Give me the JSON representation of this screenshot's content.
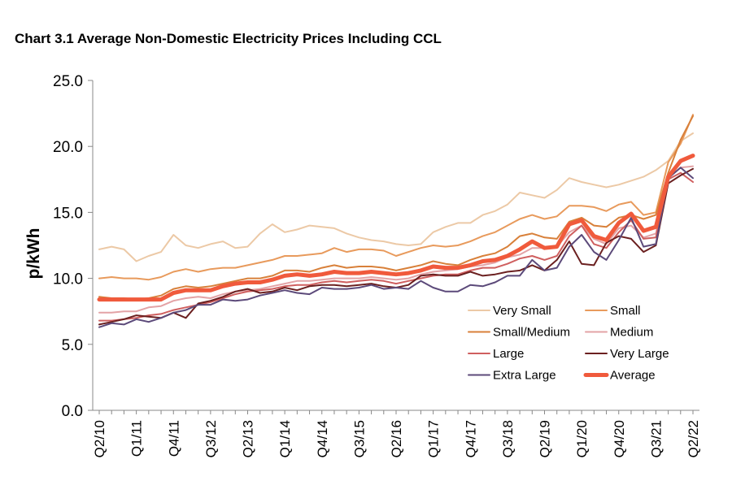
{
  "chart_data": {
    "type": "line",
    "title": "Chart 3.1 Average Non-Domestic Electricity Prices Including CCL",
    "xlabel": "",
    "ylabel": "p/kWh",
    "ylim": [
      0,
      25
    ],
    "yticks": [
      "0.0",
      "5.0",
      "10.0",
      "15.0",
      "20.0",
      "25.0"
    ],
    "x_tick_labels": [
      "Q2/10",
      "Q1/11",
      "Q4/11",
      "Q3/12",
      "Q2/13",
      "Q1/14",
      "Q4/14",
      "Q3/15",
      "Q2/16",
      "Q1/17",
      "Q4/17",
      "Q3/18",
      "Q2/19",
      "Q1/20",
      "Q4/20",
      "Q3/21",
      "Q2/22"
    ],
    "categories": [
      "Q2/10",
      "Q3/10",
      "Q4/10",
      "Q1/11",
      "Q2/11",
      "Q3/11",
      "Q4/11",
      "Q1/12",
      "Q2/12",
      "Q3/12",
      "Q4/12",
      "Q1/13",
      "Q2/13",
      "Q3/13",
      "Q4/13",
      "Q1/14",
      "Q2/14",
      "Q3/14",
      "Q4/14",
      "Q1/15",
      "Q2/15",
      "Q3/15",
      "Q4/15",
      "Q1/16",
      "Q2/16",
      "Q3/16",
      "Q4/16",
      "Q1/17",
      "Q2/17",
      "Q3/17",
      "Q4/17",
      "Q1/18",
      "Q2/18",
      "Q3/18",
      "Q4/18",
      "Q1/19",
      "Q2/19",
      "Q3/19",
      "Q4/19",
      "Q1/20",
      "Q2/20",
      "Q3/20",
      "Q4/20",
      "Q1/21",
      "Q2/21",
      "Q3/21",
      "Q4/21",
      "Q1/22",
      "Q2/22"
    ],
    "legend_position": "center-right",
    "series": [
      {
        "name": "Very Small",
        "color": "#ecc9a6",
        "width": 2,
        "values": [
          12.2,
          12.4,
          12.2,
          11.3,
          11.7,
          12.0,
          13.3,
          12.5,
          12.3,
          12.6,
          12.8,
          12.3,
          12.4,
          13.4,
          14.1,
          13.5,
          13.7,
          14.0,
          13.9,
          13.8,
          13.4,
          13.1,
          12.9,
          12.8,
          12.6,
          12.5,
          12.6,
          13.5,
          13.9,
          14.2,
          14.2,
          14.8,
          15.1,
          15.6,
          16.5,
          16.3,
          16.1,
          16.7,
          17.6,
          17.3,
          17.1,
          16.9,
          17.1,
          17.4,
          17.7,
          18.2,
          18.9,
          20.4,
          21.0
        ]
      },
      {
        "name": "Small",
        "color": "#e89a5c",
        "width": 2,
        "values": [
          10.0,
          10.1,
          10.0,
          10.0,
          9.9,
          10.1,
          10.5,
          10.7,
          10.5,
          10.7,
          10.8,
          10.8,
          11.0,
          11.2,
          11.4,
          11.7,
          11.7,
          11.8,
          11.9,
          12.3,
          12.0,
          12.2,
          12.2,
          12.1,
          11.7,
          12.0,
          12.3,
          12.5,
          12.4,
          12.5,
          12.8,
          13.2,
          13.5,
          14.0,
          14.5,
          14.8,
          14.5,
          14.7,
          15.5,
          15.5,
          15.4,
          15.1,
          15.6,
          15.8,
          14.8,
          15.0,
          18.8,
          20.2,
          22.4
        ]
      },
      {
        "name": "Small/Medium",
        "color": "#d8803a",
        "width": 2,
        "values": [
          8.6,
          8.5,
          8.5,
          8.4,
          8.5,
          8.7,
          9.2,
          9.4,
          9.3,
          9.4,
          9.6,
          9.8,
          10.0,
          10.0,
          10.2,
          10.6,
          10.6,
          10.5,
          10.8,
          11.0,
          10.8,
          10.9,
          10.9,
          10.8,
          10.6,
          10.8,
          11.0,
          11.3,
          11.1,
          11.0,
          11.4,
          11.7,
          11.9,
          12.4,
          13.2,
          13.4,
          13.1,
          13.0,
          14.3,
          14.6,
          14.0,
          13.9,
          14.6,
          14.8,
          14.5,
          14.8,
          18.0,
          20.5,
          22.3
        ]
      },
      {
        "name": "Medium",
        "color": "#e3a3a6",
        "width": 2,
        "values": [
          7.4,
          7.4,
          7.5,
          7.5,
          7.8,
          7.9,
          8.3,
          8.5,
          8.6,
          8.5,
          8.8,
          9.0,
          9.1,
          9.2,
          9.4,
          9.6,
          9.8,
          9.8,
          9.9,
          10.0,
          10.0,
          10.0,
          10.1,
          10.0,
          9.9,
          10.0,
          10.3,
          10.5,
          10.6,
          10.7,
          10.9,
          11.0,
          11.2,
          11.6,
          11.8,
          12.3,
          12.3,
          12.4,
          13.5,
          14.0,
          13.0,
          12.6,
          13.8,
          14.0,
          13.1,
          13.4,
          17.6,
          18.4,
          18.5
        ]
      },
      {
        "name": "Large",
        "color": "#cf5f5f",
        "width": 2,
        "values": [
          6.8,
          6.8,
          6.9,
          7.0,
          7.2,
          7.3,
          7.6,
          7.8,
          8.0,
          8.2,
          8.5,
          8.8,
          9.0,
          9.1,
          9.2,
          9.4,
          9.5,
          9.5,
          9.7,
          9.8,
          9.7,
          9.8,
          9.9,
          9.8,
          9.6,
          9.8,
          10.0,
          10.2,
          10.3,
          10.3,
          10.6,
          10.8,
          10.8,
          11.1,
          11.5,
          11.7,
          11.4,
          11.7,
          13.2,
          14.0,
          12.6,
          12.3,
          13.5,
          14.4,
          13.0,
          13.1,
          17.5,
          18.0,
          17.3
        ]
      },
      {
        "name": "Very Large",
        "color": "#6b2020",
        "width": 2,
        "values": [
          6.5,
          6.7,
          6.9,
          7.2,
          7.1,
          7.0,
          7.4,
          7.0,
          8.1,
          8.3,
          8.6,
          9.0,
          9.2,
          8.9,
          9.0,
          9.3,
          9.1,
          9.4,
          9.5,
          9.5,
          9.4,
          9.5,
          9.6,
          9.4,
          9.3,
          9.5,
          10.2,
          10.3,
          10.2,
          10.2,
          10.5,
          10.2,
          10.3,
          10.5,
          10.6,
          11.0,
          10.6,
          11.4,
          12.8,
          11.1,
          11.0,
          12.7,
          13.2,
          13.0,
          12.0,
          12.5,
          17.2,
          17.8,
          18.3
        ]
      },
      {
        "name": "Extra Large",
        "color": "#5c4a7a",
        "width": 2,
        "values": [
          6.3,
          6.6,
          6.5,
          6.9,
          6.7,
          7.0,
          7.4,
          7.6,
          8.0,
          8.0,
          8.4,
          8.3,
          8.4,
          8.7,
          8.9,
          9.1,
          8.9,
          8.8,
          9.3,
          9.2,
          9.2,
          9.3,
          9.5,
          9.2,
          9.3,
          9.2,
          9.8,
          9.3,
          9.0,
          9.0,
          9.5,
          9.4,
          9.7,
          10.2,
          10.2,
          11.4,
          10.6,
          10.8,
          12.4,
          13.3,
          12.0,
          11.4,
          12.9,
          14.6,
          12.4,
          12.6,
          17.6,
          18.4,
          17.6
        ]
      },
      {
        "name": "Average",
        "color": "#f05a3c",
        "width": 5,
        "values": [
          8.4,
          8.4,
          8.4,
          8.4,
          8.4,
          8.4,
          8.9,
          9.1,
          9.1,
          9.1,
          9.4,
          9.6,
          9.7,
          9.7,
          9.9,
          10.2,
          10.3,
          10.2,
          10.3,
          10.5,
          10.4,
          10.4,
          10.5,
          10.4,
          10.3,
          10.4,
          10.6,
          10.9,
          10.8,
          10.8,
          11.0,
          11.3,
          11.4,
          11.7,
          12.2,
          12.8,
          12.3,
          12.4,
          14.1,
          14.4,
          13.2,
          12.9,
          14.2,
          14.9,
          13.6,
          13.9,
          17.7,
          18.9,
          19.3
        ]
      }
    ]
  }
}
